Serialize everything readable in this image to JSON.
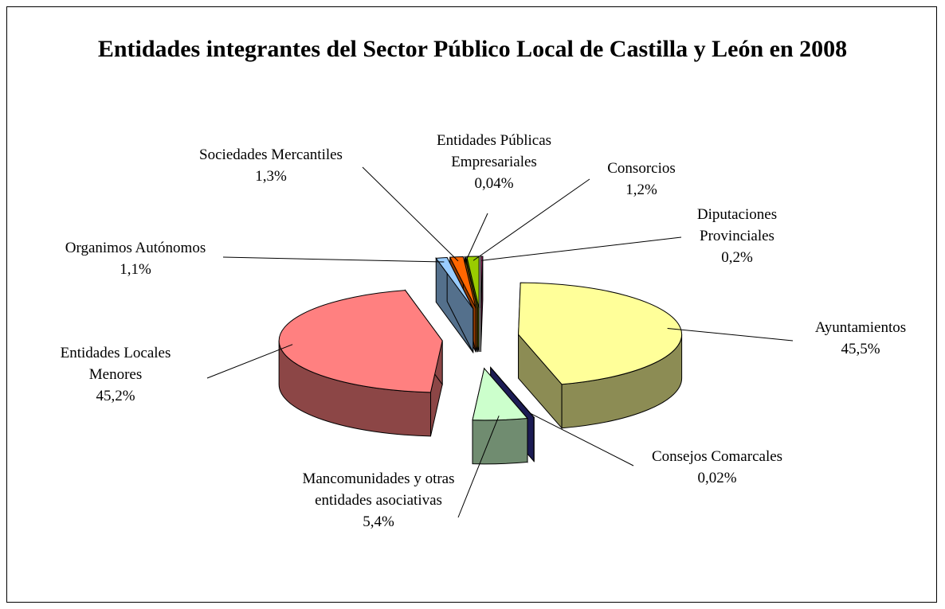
{
  "chart_data": {
    "type": "pie",
    "title": "Entidades integrantes del Sector Público Local de Castilla y León en 2008",
    "categories": [
      "Diputaciones Provinciales",
      "Ayuntamientos",
      "Consejos Comarcales",
      "Mancomunidades y otras entidades asociativas",
      "Entidades Locales Menores",
      "Organimos Autónomos",
      "Sociedades Mercantiles",
      "Entidades Públicas Empresariales",
      "Consorcios"
    ],
    "values": [
      0.2,
      45.5,
      0.02,
      5.4,
      45.2,
      1.1,
      1.3,
      0.04,
      1.2
    ],
    "value_labels": [
      "0,2%",
      "45,5%",
      "0,02%",
      "5,4%",
      "45,2%",
      "1,1%",
      "1,3%",
      "0,04%",
      "1,2%"
    ],
    "colors": [
      "#993366",
      "#ffff99",
      "#333399",
      "#ccffcc",
      "#ff8080",
      "#99ccff",
      "#ff6600",
      "#ff9900",
      "#99cc00"
    ]
  }
}
